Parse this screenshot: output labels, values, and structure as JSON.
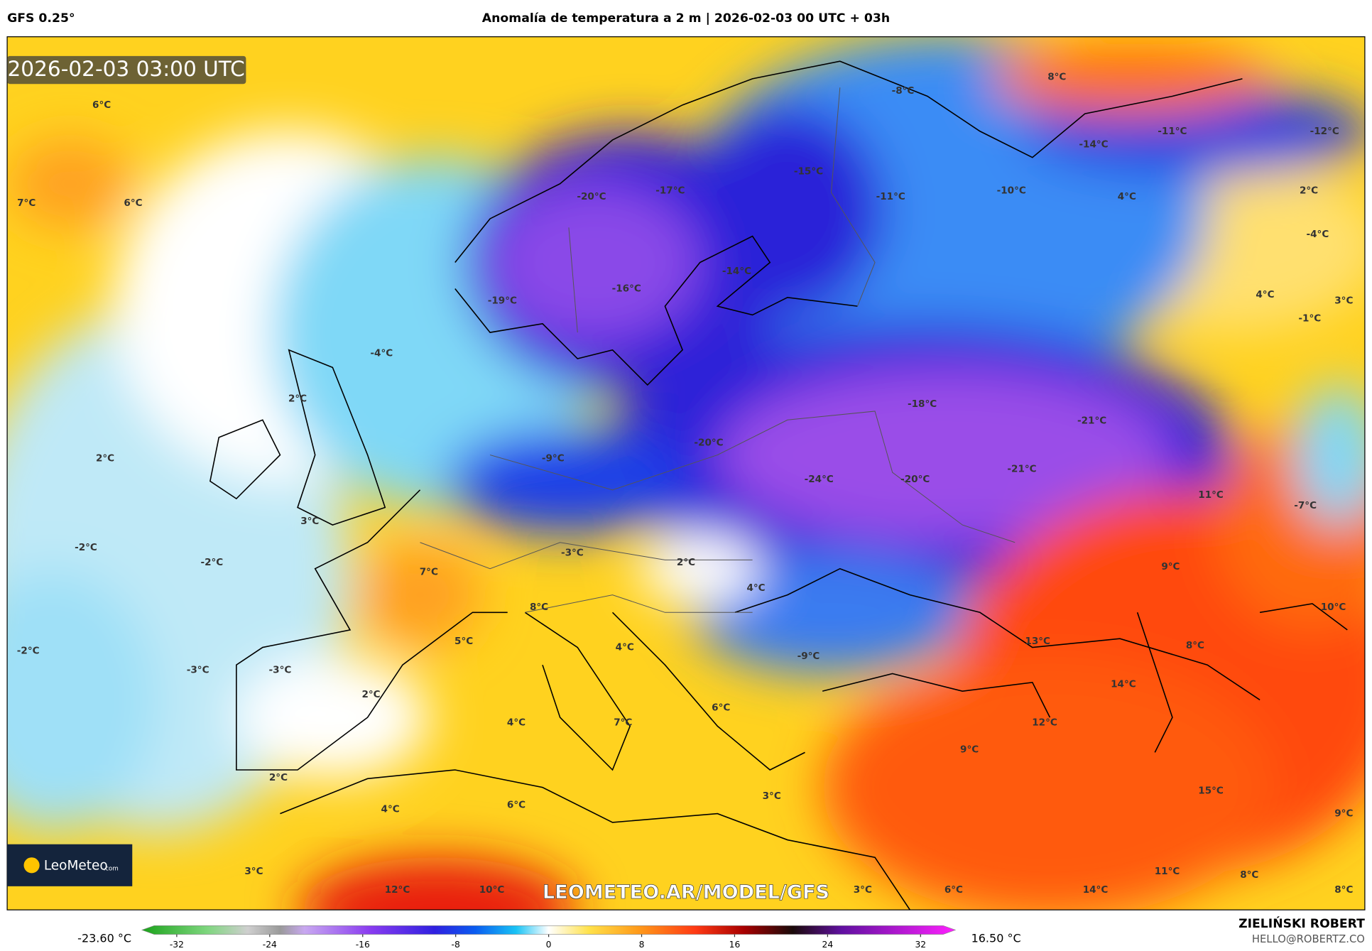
{
  "header": {
    "model": "GFS 0.25°",
    "title": "Anomalía de temperatura a 2 m | 2026-02-03 00 UTC + 03h"
  },
  "map": {
    "timestamp": "2026-02-03 03:00 UTC",
    "watermark": "LEOMETEO.AR/MODEL/GFS",
    "logo": {
      "name": "LeoMeteo",
      "suffix": ".com"
    },
    "labels": [
      "6°C",
      "7°C",
      "6°C",
      "-8°C",
      "8°C",
      "-15°C",
      "-20°C",
      "-17°C",
      "-11°C",
      "-14°C",
      "-11°C",
      "-12°C",
      "-10°C",
      "4°C",
      "2°C",
      "-4°C",
      "-14°C",
      "-16°C",
      "-19°C",
      "4°C",
      "3°C",
      "-1°C",
      "-4°C",
      "2°C",
      "-18°C",
      "-21°C",
      "2°C",
      "-9°C",
      "-20°C",
      "-24°C",
      "-20°C",
      "-21°C",
      "11°C",
      "-7°C",
      "3°C",
      "-2°C",
      "-2°C",
      "-3°C",
      "2°C",
      "9°C",
      "7°C",
      "4°C",
      "8°C",
      "10°C",
      "5°C",
      "4°C",
      "13°C",
      "8°C",
      "-2°C",
      "-3°C",
      "-3°C",
      "-9°C",
      "14°C",
      "2°C",
      "6°C",
      "4°C",
      "7°C",
      "12°C",
      "9°C",
      "2°C",
      "3°C",
      "15°C",
      "4°C",
      "6°C",
      "9°C",
      "3°C",
      "11°C",
      "8°C",
      "12°C",
      "10°C",
      "3°C",
      "6°C",
      "14°C",
      "8°C"
    ]
  },
  "colorbar": {
    "min_label": "-23.60 °C",
    "max_label": "16.50 °C",
    "range": [
      -35,
      35
    ],
    "ticks": [
      -32,
      -24,
      -16,
      -8,
      0,
      8,
      16,
      24,
      32
    ]
  },
  "footer": {
    "author": "ZIELIŃSKI ROBERT",
    "contact": "HELLO@ROBERTZ.CO"
  }
}
